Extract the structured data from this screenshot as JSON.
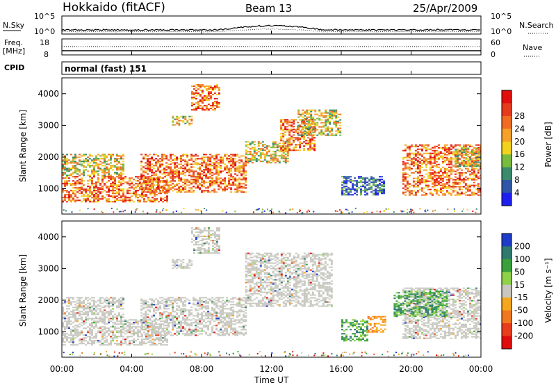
{
  "header": {
    "title": "Hokkaido (fitACF)",
    "beam": "Beam 13",
    "date": "25/Apr/2009"
  },
  "noise_panel": {
    "left_label": "N.Sky",
    "right_label": "N.Search",
    "left_ticks": [
      "10^5",
      "10^0"
    ],
    "right_ticks": [
      "10^5",
      "10^0"
    ]
  },
  "freq_panel": {
    "left_label_1": "Freq.",
    "left_label_2": "[MHz]",
    "right_label": "Nave",
    "left_ticks": [
      "18",
      "8"
    ],
    "right_ticks": [
      "60",
      "0"
    ]
  },
  "cpid": {
    "label": "CPID",
    "value": "normal (fast) 151"
  },
  "x_axis": {
    "label": "Time UT",
    "ticks": [
      "00:00",
      "04:00",
      "08:00",
      "12:00",
      "16:00",
      "20:00",
      "00:00"
    ]
  },
  "chart_data": [
    {
      "type": "heatmap",
      "name": "power",
      "ylabel": "Slant Range [km]",
      "xlim": [
        0,
        24
      ],
      "ylim": [
        200,
        4500
      ],
      "yticks": [
        1000,
        2000,
        3000,
        4000
      ],
      "colorbar": {
        "label": "Power [dB]",
        "ticks": [
          "4",
          "8",
          "12",
          "16",
          "20",
          "24",
          "28"
        ],
        "colors": [
          "#1e1ef0",
          "#2e55a6",
          "#3a8a6e",
          "#79bb3f",
          "#f2d21c",
          "#f5a12a",
          "#ef6c22",
          "#e63a1c",
          "#e20d0d"
        ]
      },
      "echo_regions": [
        {
          "t0": 0.0,
          "t1": 6.0,
          "r0": 600,
          "r1": 1400,
          "level": "high"
        },
        {
          "t0": 0.0,
          "t1": 3.5,
          "r0": 1400,
          "r1": 2100,
          "level": "mid"
        },
        {
          "t0": 4.5,
          "t1": 10.5,
          "r0": 900,
          "r1": 2100,
          "level": "high"
        },
        {
          "t0": 6.3,
          "t1": 7.4,
          "r0": 3000,
          "r1": 3300,
          "level": "mid"
        },
        {
          "t0": 7.4,
          "t1": 9.0,
          "r0": 3500,
          "r1": 4300,
          "level": "high"
        },
        {
          "t0": 10.5,
          "t1": 13.0,
          "r0": 1800,
          "r1": 2500,
          "level": "mid"
        },
        {
          "t0": 12.5,
          "t1": 14.5,
          "r0": 2200,
          "r1": 3200,
          "level": "high"
        },
        {
          "t0": 13.5,
          "t1": 16.0,
          "r0": 2700,
          "r1": 3500,
          "level": "mid"
        },
        {
          "t0": 16.0,
          "t1": 18.5,
          "r0": 800,
          "r1": 1400,
          "level": "low"
        },
        {
          "t0": 19.5,
          "t1": 24.0,
          "r0": 800,
          "r1": 2400,
          "level": "high"
        },
        {
          "t0": 22.5,
          "t1": 24.0,
          "r0": 1700,
          "r1": 2300,
          "level": "mid"
        }
      ]
    },
    {
      "type": "heatmap",
      "name": "velocity",
      "ylabel": "Slant Range [km]",
      "xlim": [
        0,
        24
      ],
      "ylim": [
        200,
        4500
      ],
      "yticks": [
        1000,
        2000,
        3000,
        4000
      ],
      "colorbar": {
        "label": "Velocity [m s⁻¹]",
        "ticks": [
          "200",
          "100",
          "50",
          "15",
          "-15",
          "-50",
          "-100",
          "-200"
        ],
        "colors": [
          "#1e3cc8",
          "#2e7a6e",
          "#3aa03c",
          "#8fd24a",
          "#c8c8c0",
          "#f5a61c",
          "#f07820",
          "#e83c1c",
          "#e00c0c"
        ]
      },
      "echo_regions": [
        {
          "t0": 0.0,
          "t1": 6.0,
          "r0": 600,
          "r1": 1400,
          "class": "ground"
        },
        {
          "t0": 0.0,
          "t1": 3.5,
          "r0": 1400,
          "r1": 2100,
          "class": "ground"
        },
        {
          "t0": 4.5,
          "t1": 10.5,
          "r0": 900,
          "r1": 2100,
          "class": "ground"
        },
        {
          "t0": 6.3,
          "t1": 7.4,
          "r0": 3000,
          "r1": 3300,
          "class": "ground"
        },
        {
          "t0": 7.4,
          "t1": 9.0,
          "r0": 3500,
          "r1": 4300,
          "class": "ground"
        },
        {
          "t0": 10.5,
          "t1": 15.5,
          "r0": 1800,
          "r1": 3500,
          "class": "ground"
        },
        {
          "t0": 16.0,
          "t1": 17.5,
          "r0": 700,
          "r1": 1400,
          "class": "positive"
        },
        {
          "t0": 17.5,
          "t1": 18.5,
          "r0": 1000,
          "r1": 1500,
          "class": "negative"
        },
        {
          "t0": 19.5,
          "t1": 24.0,
          "r0": 800,
          "r1": 2400,
          "class": "ground"
        },
        {
          "t0": 19.0,
          "t1": 22.0,
          "r0": 1500,
          "r1": 2300,
          "class": "positive"
        }
      ]
    }
  ]
}
